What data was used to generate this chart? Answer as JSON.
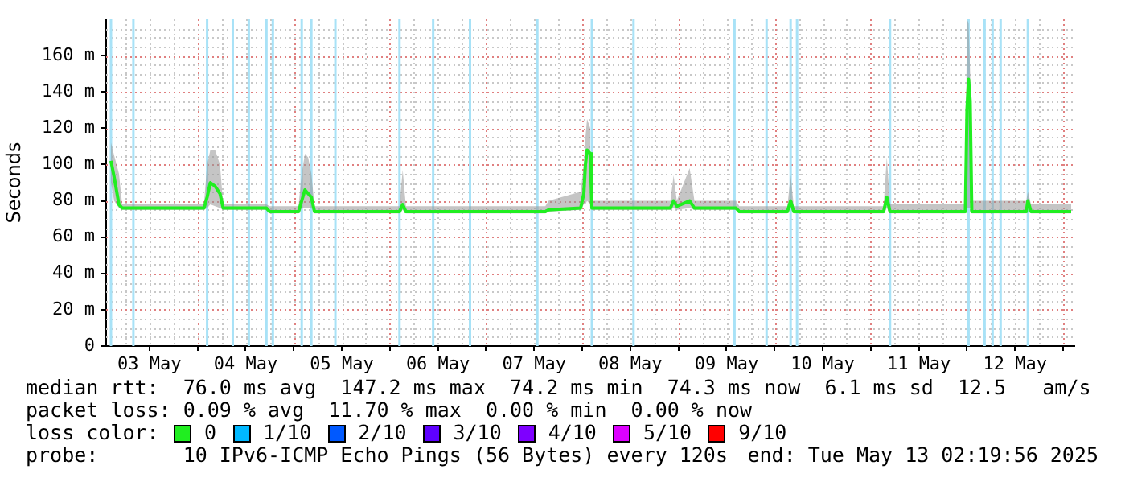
{
  "chart_data": {
    "type": "line",
    "ylabel": "Seconds",
    "legend_title": "loss color:",
    "legend": "bottom",
    "grid": true,
    "marker": "none",
    "line_style": "solid",
    "xlim": [
      "2025-05-03T01:12",
      "2025-05-13T02:48"
    ],
    "xticks": [
      {
        "value": "2025-05-03T12:00",
        "label": "03 May"
      },
      {
        "value": "2025-05-04T00:00",
        "label": null
      },
      {
        "value": "2025-05-04T12:00",
        "label": "04 May"
      },
      {
        "value": "2025-05-05T00:00",
        "label": null
      },
      {
        "value": "2025-05-05T12:00",
        "label": "05 May"
      },
      {
        "value": "2025-05-06T00:00",
        "label": null
      },
      {
        "value": "2025-05-06T12:00",
        "label": "06 May"
      },
      {
        "value": "2025-05-07T00:00",
        "label": null
      },
      {
        "value": "2025-05-07T12:00",
        "label": "07 May"
      },
      {
        "value": "2025-05-08T00:00",
        "label": null
      },
      {
        "value": "2025-05-08T12:00",
        "label": "08 May"
      },
      {
        "value": "2025-05-09T00:00",
        "label": null
      },
      {
        "value": "2025-05-09T12:00",
        "label": "09 May"
      },
      {
        "value": "2025-05-10T00:00",
        "label": null
      },
      {
        "value": "2025-05-10T12:00",
        "label": "10 May"
      },
      {
        "value": "2025-05-11T00:00",
        "label": null
      },
      {
        "value": "2025-05-11T12:00",
        "label": "11 May"
      },
      {
        "value": "2025-05-12T00:00",
        "label": null
      },
      {
        "value": "2025-05-12T12:00",
        "label": "12 May"
      },
      {
        "value": "2025-05-13T00:00",
        "label": null
      }
    ],
    "ylim": [
      0,
      180
    ],
    "yticks": [
      0,
      {
        "value": 20,
        "label": "20 m"
      },
      {
        "value": 40,
        "label": "40 m"
      },
      {
        "value": 60,
        "label": "60 m"
      },
      {
        "value": 80,
        "label": "80 m"
      },
      {
        "value": 100,
        "label": "100 m"
      },
      {
        "value": 120,
        "label": "120 m"
      },
      {
        "value": 140,
        "label": "140 m"
      },
      {
        "value": 160,
        "label": "160 m"
      }
    ],
    "series": [
      {
        "name": "0",
        "color": "#20ee20",
        "x": [
          "2025-05-03T02:24",
          "2025-05-03T03:12",
          "2025-05-03T04:24",
          "2025-05-03T05:12",
          "2025-05-04T01:36",
          "2025-05-04T02:24",
          "2025-05-04T03:12",
          "2025-05-04T04:24",
          "2025-05-04T05:36",
          "2025-05-04T06:24",
          "2025-05-04T17:12",
          "2025-05-04T18:00",
          "2025-05-05T01:12",
          "2025-05-05T02:00",
          "2025-05-05T02:48",
          "2025-05-05T03:36",
          "2025-05-05T04:24",
          "2025-05-05T05:12",
          "2025-05-06T02:24",
          "2025-05-06T03:12",
          "2025-05-06T04:00",
          "2025-05-07T14:48",
          "2025-05-07T15:36",
          "2025-05-07T23:36",
          "2025-05-08T00:24",
          "2025-05-08T00:48",
          "2025-05-08T01:12",
          "2025-05-08T02:00",
          "2025-05-08T02:24",
          "2025-05-08T22:00",
          "2025-05-08T22:48",
          "2025-05-08T23:36",
          "2025-05-09T02:48",
          "2025-05-09T04:00",
          "2025-05-09T14:24",
          "2025-05-09T15:12",
          "2025-05-10T03:12",
          "2025-05-10T04:00",
          "2025-05-10T04:48",
          "2025-05-11T03:12",
          "2025-05-11T04:00",
          "2025-05-11T04:48",
          "2025-05-11T23:36",
          "2025-05-12T00:00",
          "2025-05-12T00:24",
          "2025-05-12T00:48",
          "2025-05-12T01:12",
          "2025-05-12T14:48",
          "2025-05-12T15:12",
          "2025-05-12T16:00",
          "2025-05-13T02:00"
        ],
        "values": [
          102,
          93,
          78,
          76,
          76,
          82,
          90,
          88,
          84,
          76,
          76,
          74,
          74,
          80,
          86,
          84,
          82,
          74,
          74,
          78,
          74,
          74,
          75,
          76,
          84,
          100,
          108,
          106,
          76,
          76,
          80,
          77,
          80,
          76,
          76,
          74,
          74,
          80,
          74,
          74,
          82,
          74,
          74,
          130,
          147,
          135,
          74,
          74,
          80,
          74,
          74
        ],
        "lower": [
          90,
          80,
          76,
          75,
          75,
          76,
          78,
          77,
          76,
          75,
          75,
          73,
          73,
          76,
          76,
          76,
          76,
          73,
          73,
          75,
          73,
          73,
          74,
          75,
          78,
          78,
          80,
          78,
          75,
          75,
          76,
          75,
          76,
          75,
          75,
          73,
          73,
          76,
          73,
          73,
          76,
          73,
          73,
          76,
          76,
          76,
          73,
          73,
          76,
          73,
          73
        ],
        "upper": [
          112,
          105,
          95,
          78,
          78,
          100,
          108,
          108,
          100,
          78,
          78,
          77,
          77,
          95,
          106,
          104,
          95,
          77,
          77,
          97,
          77,
          77,
          80,
          85,
          100,
          115,
          125,
          120,
          80,
          80,
          94,
          80,
          98,
          80,
          80,
          77,
          77,
          94,
          77,
          77,
          104,
          78,
          78,
          180,
          178,
          150,
          80,
          80,
          85,
          78,
          78
        ]
      },
      {
        "name": "1/10",
        "color": "#00b8ff"
      },
      {
        "name": "2/10",
        "color": "#0059ff"
      },
      {
        "name": "3/10",
        "color": "#5e00ff"
      },
      {
        "name": "4/10",
        "color": "#7e00ff"
      },
      {
        "name": "5/10",
        "color": "#dd00ff"
      },
      {
        "name": "9/10",
        "color": "#ff0000"
      }
    ],
    "ref_lines": [
      {
        "axis": "x",
        "value": "2025-05-03T02:24",
        "color": "#a8e2f7"
      },
      {
        "axis": "x",
        "value": "2025-05-03T08:00",
        "color": "#a8e2f7"
      },
      {
        "axis": "x",
        "value": "2025-05-04T02:24",
        "color": "#a8e2f7"
      },
      {
        "axis": "x",
        "value": "2025-05-04T08:48",
        "color": "#a8e2f7"
      },
      {
        "axis": "x",
        "value": "2025-05-04T12:48",
        "color": "#a8e2f7"
      },
      {
        "axis": "x",
        "value": "2025-05-04T17:12",
        "color": "#a8e2f7"
      },
      {
        "axis": "x",
        "value": "2025-05-04T18:48",
        "color": "#a8e2f7"
      },
      {
        "axis": "x",
        "value": "2025-05-05T02:00",
        "color": "#a8e2f7"
      },
      {
        "axis": "x",
        "value": "2025-05-05T04:24",
        "color": "#a8e2f7"
      },
      {
        "axis": "x",
        "value": "2025-05-05T10:24",
        "color": "#a8e2f7"
      },
      {
        "axis": "x",
        "value": "2025-05-06T02:24",
        "color": "#a8e2f7"
      },
      {
        "axis": "x",
        "value": "2025-05-06T10:48",
        "color": "#a8e2f7"
      },
      {
        "axis": "x",
        "value": "2025-05-06T20:00",
        "color": "#a8e2f7"
      },
      {
        "axis": "x",
        "value": "2025-05-07T12:48",
        "color": "#a8e2f7"
      },
      {
        "axis": "x",
        "value": "2025-05-08T02:24",
        "color": "#a8e2f7"
      },
      {
        "axis": "x",
        "value": "2025-05-08T12:48",
        "color": "#a8e2f7"
      },
      {
        "axis": "x",
        "value": "2025-05-09T14:00",
        "color": "#a8e2f7"
      },
      {
        "axis": "x",
        "value": "2025-05-09T22:00",
        "color": "#a8e2f7"
      },
      {
        "axis": "x",
        "value": "2025-05-10T04:00",
        "color": "#a8e2f7"
      },
      {
        "axis": "x",
        "value": "2025-05-10T05:36",
        "color": "#a8e2f7"
      },
      {
        "axis": "x",
        "value": "2025-05-11T04:48",
        "color": "#a8e2f7"
      },
      {
        "axis": "x",
        "value": "2025-05-12T00:24",
        "color": "#a8e2f7"
      },
      {
        "axis": "x",
        "value": "2025-05-12T04:24",
        "color": "#a8e2f7"
      },
      {
        "axis": "x",
        "value": "2025-05-12T06:24",
        "color": "#a8e2f7"
      },
      {
        "axis": "x",
        "value": "2025-05-12T08:24",
        "color": "#a8e2f7"
      },
      {
        "axis": "x",
        "value": "2025-05-12T15:12",
        "color": "#a8e2f7"
      }
    ],
    "annotations": [
      "median rtt:  76.0 ms avg  147.2 ms max  74.2 ms min  74.3 ms now  6.1 ms sd  12.5   am/s",
      "packet loss: 0.09 % avg  11.70 % max  0.00 % min  0.00 % now",
      "probe:       10 IPv6-ICMP Echo Pings (56 Bytes) every 120s",
      "end: Tue May 13 02:19:56 2025"
    ]
  }
}
